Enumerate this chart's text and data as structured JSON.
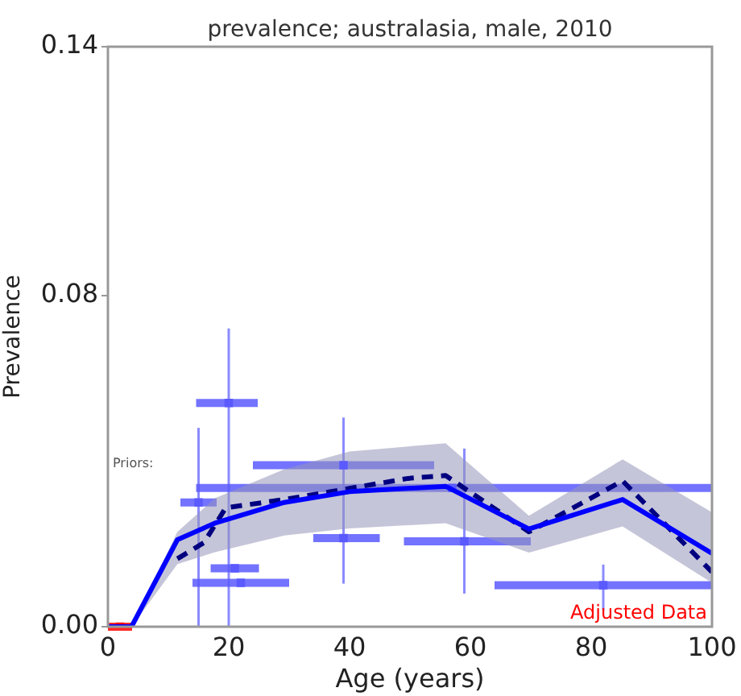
{
  "chart_data": {
    "type": "line",
    "title": "prevalence; australasia, male, 2010",
    "xlabel": "Age (years)",
    "ylabel": "Prevalence",
    "xlim": [
      0,
      100
    ],
    "xticks": [
      0,
      20,
      40,
      60,
      80,
      100
    ],
    "ylim": [
      0,
      0.14
    ],
    "yticks": [
      {
        "value": 0,
        "label": "0.00"
      },
      {
        "value": 0.08,
        "label": "0.08"
      },
      {
        "value": 0.14,
        "label": "0.14"
      }
    ],
    "grid": false,
    "annotations": [
      "Priors:"
    ],
    "series": [
      {
        "color": "#0000ff",
        "line_style": "solid",
        "x": [
          0,
          3.9,
          11.5,
          17.7,
          29.2,
          40,
          55.9,
          69.7,
          85.2,
          100
        ],
        "values": [
          0,
          0,
          0.021,
          0.025,
          0.03,
          0.0326,
          0.0339,
          0.0236,
          0.0307,
          0.0177
        ],
        "lower": [
          0,
          0,
          0.0151,
          0.018,
          0.022,
          0.0237,
          0.025,
          0.0179,
          0.0242,
          0.0106
        ],
        "upper": [
          0,
          0,
          0.0229,
          0.031,
          0.038,
          0.0423,
          0.0443,
          0.0268,
          0.0404,
          0.0276
        ]
      },
      {
        "color": "#000080",
        "line_style": "dashed",
        "x": [
          11.5,
          15.9,
          19.5,
          29.2,
          49.7,
          55.9,
          69.7,
          85.2,
          100
        ],
        "values": [
          0.0164,
          0.0203,
          0.0287,
          0.0307,
          0.0358,
          0.0365,
          0.0229,
          0.0352,
          0.0132
        ]
      },
      {
        "type": "scatter",
        "marker": "square",
        "color": "#5a5aff",
        "x": [
          20,
          57,
          39,
          21,
          22,
          82,
          59,
          39,
          15
        ],
        "values": [
          0.054,
          0.0335,
          0.039,
          0.0141,
          0.0106,
          0.01,
          0.0206,
          0.0214,
          0.03
        ],
        "xerrors": [
          [
            14.6,
            24.8
          ],
          [
            14.6,
            100
          ],
          [
            24,
            54
          ],
          [
            17,
            25
          ],
          [
            14,
            30
          ],
          [
            64,
            100
          ],
          [
            49,
            70
          ],
          [
            34,
            45
          ],
          [
            12,
            18
          ]
        ],
        "errors": [
          [
            0,
            0.072
          ],
          null,
          null,
          null,
          null,
          [
            0.004,
            0.015
          ],
          [
            0.008,
            0.043
          ],
          [
            0.0104,
            0.0505
          ],
          [
            0,
            0.048
          ]
        ]
      },
      {
        "type": "scatter",
        "marker": "square",
        "name": "Adjusted Data",
        "color": "#ff0000",
        "x": [
          2
        ],
        "values": [
          0
        ],
        "xerrors": [
          [
            0,
            4
          ]
        ]
      }
    ]
  }
}
